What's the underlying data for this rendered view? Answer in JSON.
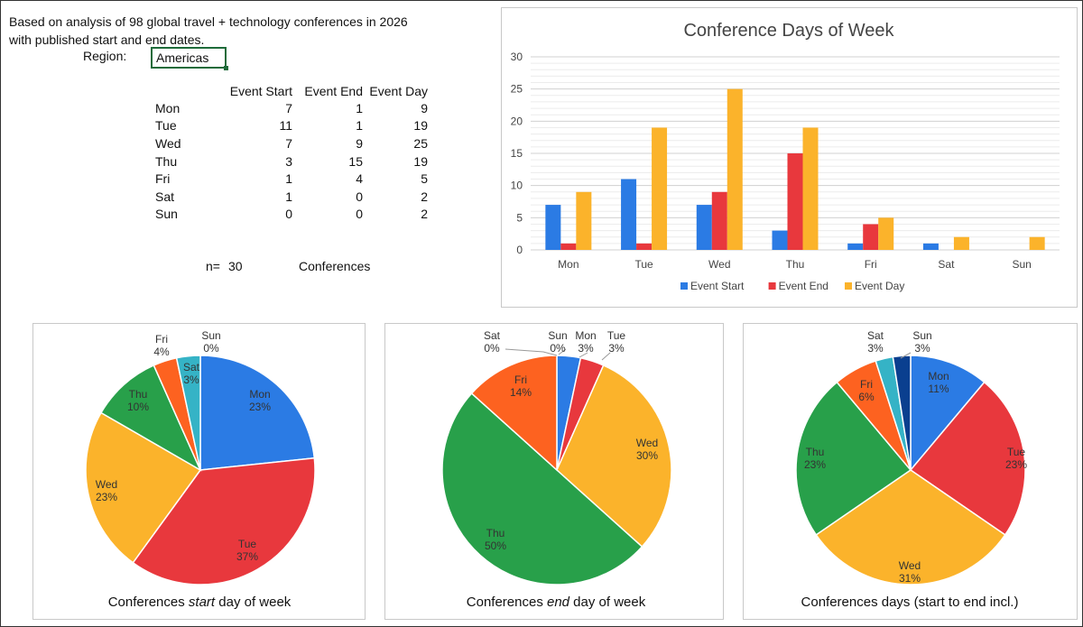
{
  "intro": {
    "line1": "Based on analysis of 98 global travel + technology conferences in 2026",
    "line2": "with published start and end dates."
  },
  "region": {
    "label": "Region:",
    "value": "Americas"
  },
  "table": {
    "headers": [
      "Event Start",
      "Event End",
      "Event Day"
    ],
    "rows": [
      {
        "day": "Mon",
        "start": "7",
        "end": "1",
        "dayc": "9"
      },
      {
        "day": "Tue",
        "start": "11",
        "end": "1",
        "dayc": "19"
      },
      {
        "day": "Wed",
        "start": "7",
        "end": "9",
        "dayc": "25"
      },
      {
        "day": "Thu",
        "start": "3",
        "end": "15",
        "dayc": "19"
      },
      {
        "day": "Fri",
        "start": "1",
        "end": "4",
        "dayc": "5"
      },
      {
        "day": "Sat",
        "start": "1",
        "end": "0",
        "dayc": "2"
      },
      {
        "day": "Sun",
        "start": "0",
        "end": "0",
        "dayc": "2"
      }
    ]
  },
  "summary": {
    "n_label": "n=",
    "n_value": "30",
    "unit": "Conferences"
  },
  "colors": {
    "start": "#2b7be4",
    "end": "#e8383d",
    "day": "#fbb32b",
    "mon": "#2b7be4",
    "tue": "#e8383d",
    "wed": "#fbb32b",
    "thu": "#28a04a",
    "fri": "#fd6220",
    "sat": "#35b3c6",
    "sun": "#0a3f8f"
  },
  "chart_data": [
    {
      "type": "bar",
      "title": "Conference Days of Week",
      "categories": [
        "Mon",
        "Tue",
        "Wed",
        "Thu",
        "Fri",
        "Sat",
        "Sun"
      ],
      "series": [
        {
          "name": "Event Start",
          "color": "#2b7be4",
          "values": [
            7,
            11,
            7,
            3,
            1,
            1,
            0
          ]
        },
        {
          "name": "Event End",
          "color": "#e8383d",
          "values": [
            1,
            1,
            9,
            15,
            4,
            0,
            0
          ]
        },
        {
          "name": "Event Day",
          "color": "#fbb32b",
          "values": [
            9,
            19,
            25,
            19,
            5,
            2,
            2
          ]
        }
      ],
      "ylim": [
        0,
        30
      ],
      "yticks": [
        "0",
        "5",
        "10",
        "15",
        "20",
        "25",
        "30"
      ],
      "grid": true,
      "legend": "bottom"
    },
    {
      "type": "pie",
      "title": "Conferences start day of week",
      "title_parts": {
        "before": "Conferences ",
        "em": "start",
        "after": " day of week"
      },
      "slices": [
        {
          "label": "Mon",
          "value": 7,
          "pct": "23%"
        },
        {
          "label": "Tue",
          "value": 11,
          "pct": "37%"
        },
        {
          "label": "Wed",
          "value": 7,
          "pct": "23%"
        },
        {
          "label": "Thu",
          "value": 3,
          "pct": "10%"
        },
        {
          "label": "Fri",
          "value": 1,
          "pct": "4%"
        },
        {
          "label": "Sat",
          "value": 1,
          "pct": "3%"
        },
        {
          "label": "Sun",
          "value": 0,
          "pct": "0%"
        }
      ]
    },
    {
      "type": "pie",
      "title": "Conferences end day of week",
      "title_parts": {
        "before": "Conferences ",
        "em": "end",
        "after": " day of week"
      },
      "slices": [
        {
          "label": "Mon",
          "value": 1,
          "pct": "3%"
        },
        {
          "label": "Tue",
          "value": 1,
          "pct": "3%"
        },
        {
          "label": "Wed",
          "value": 9,
          "pct": "30%"
        },
        {
          "label": "Thu",
          "value": 15,
          "pct": "50%"
        },
        {
          "label": "Fri",
          "value": 4,
          "pct": "14%"
        },
        {
          "label": "Sat",
          "value": 0,
          "pct": "0%"
        },
        {
          "label": "Sun",
          "value": 0,
          "pct": "0%"
        }
      ]
    },
    {
      "type": "pie",
      "title": "Conferences days (start to end incl.)",
      "title_parts": {
        "before": "Conferences days (start to end incl.)",
        "em": "",
        "after": ""
      },
      "slices": [
        {
          "label": "Mon",
          "value": 9,
          "pct": "11%"
        },
        {
          "label": "Tue",
          "value": 19,
          "pct": "23%"
        },
        {
          "label": "Wed",
          "value": 25,
          "pct": "31%"
        },
        {
          "label": "Thu",
          "value": 19,
          "pct": "23%"
        },
        {
          "label": "Fri",
          "value": 5,
          "pct": "6%"
        },
        {
          "label": "Sat",
          "value": 2,
          "pct": "3%"
        },
        {
          "label": "Sun",
          "value": 2,
          "pct": "3%"
        }
      ]
    }
  ]
}
